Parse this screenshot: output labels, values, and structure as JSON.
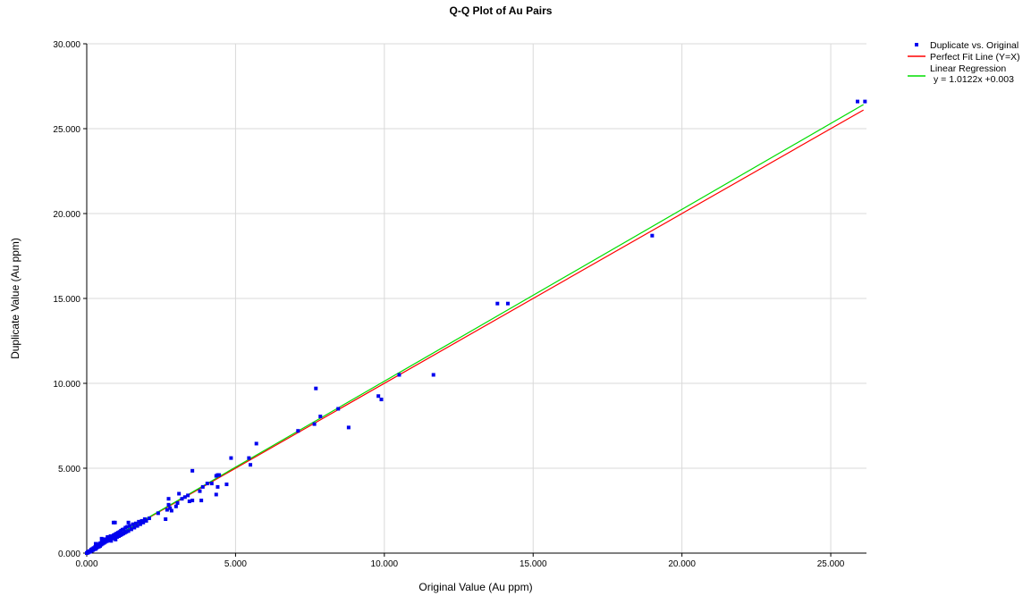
{
  "chart_data": {
    "type": "scatter",
    "title": "Q-Q Plot of Au Pairs",
    "xlabel": "Original Value (Au ppm)",
    "ylabel": "Duplicate Value (Au ppm)",
    "xlim": [
      0,
      26.2
    ],
    "ylim": [
      0,
      30
    ],
    "x_ticks": [
      "0.000",
      "5.000",
      "10.000",
      "15.000",
      "20.000",
      "25.000"
    ],
    "y_ticks": [
      "0.000",
      "5.000",
      "10.000",
      "15.000",
      "20.000",
      "25.000",
      "30.000"
    ],
    "grid": true,
    "legend_position": "top-right",
    "legend": {
      "scatter": "Duplicate vs. Original",
      "perfect_fit": "Perfect Fit Line (Y=X)",
      "regression": "Linear Regression",
      "regression_eq": "y = 1.0122x +0.003"
    },
    "colors": {
      "points": "#0000ee",
      "perfect_fit": "#ff0000",
      "regression": "#00dd00",
      "grid": "#d9d9d9"
    },
    "regression": {
      "slope": 1.0122,
      "intercept": 0.003
    },
    "series": [
      {
        "name": "Duplicate vs. Original",
        "points": [
          [
            0.0,
            0.0
          ],
          [
            0.02,
            0.02
          ],
          [
            0.03,
            0.05
          ],
          [
            0.05,
            0.03
          ],
          [
            0.06,
            0.1
          ],
          [
            0.08,
            0.07
          ],
          [
            0.1,
            0.12
          ],
          [
            0.12,
            0.08
          ],
          [
            0.14,
            0.17
          ],
          [
            0.15,
            0.21
          ],
          [
            0.17,
            0.13
          ],
          [
            0.19,
            0.25
          ],
          [
            0.21,
            0.18
          ],
          [
            0.23,
            0.3
          ],
          [
            0.24,
            0.22
          ],
          [
            0.26,
            0.28
          ],
          [
            0.28,
            0.36
          ],
          [
            0.3,
            0.24
          ],
          [
            0.32,
            0.4
          ],
          [
            0.33,
            0.31
          ],
          [
            0.35,
            0.45
          ],
          [
            0.37,
            0.35
          ],
          [
            0.39,
            0.5
          ],
          [
            0.41,
            0.38
          ],
          [
            0.43,
            0.56
          ],
          [
            0.45,
            0.42
          ],
          [
            0.47,
            0.6
          ],
          [
            0.49,
            0.5
          ],
          [
            0.51,
            0.66
          ],
          [
            0.53,
            0.55
          ],
          [
            0.55,
            0.7
          ],
          [
            0.58,
            0.6
          ],
          [
            0.6,
            0.82
          ],
          [
            0.62,
            0.65
          ],
          [
            0.65,
            0.76
          ],
          [
            0.68,
            0.7
          ],
          [
            0.7,
            0.9
          ],
          [
            0.73,
            0.75
          ],
          [
            0.75,
            0.88
          ],
          [
            0.78,
            0.8
          ],
          [
            0.8,
            1.0
          ],
          [
            0.82,
            0.72
          ],
          [
            0.85,
            0.95
          ],
          [
            0.88,
            0.86
          ],
          [
            0.9,
            1.05
          ],
          [
            0.93,
            0.9
          ],
          [
            0.95,
            1.1
          ],
          [
            0.97,
            0.8
          ],
          [
            1.0,
            1.15
          ],
          [
            1.02,
            0.95
          ],
          [
            1.05,
            1.2
          ],
          [
            1.08,
            1.0
          ],
          [
            1.1,
            1.25
          ],
          [
            1.13,
            1.05
          ],
          [
            1.15,
            1.32
          ],
          [
            1.18,
            1.1
          ],
          [
            1.2,
            1.38
          ],
          [
            1.23,
            1.15
          ],
          [
            1.25,
            1.4
          ],
          [
            1.28,
            1.2
          ],
          [
            1.3,
            1.5
          ],
          [
            1.33,
            1.25
          ],
          [
            1.36,
            1.55
          ],
          [
            1.4,
            1.3
          ],
          [
            1.45,
            1.6
          ],
          [
            1.5,
            1.4
          ],
          [
            1.55,
            1.7
          ],
          [
            1.6,
            1.5
          ],
          [
            1.65,
            1.75
          ],
          [
            1.7,
            1.6
          ],
          [
            1.75,
            1.85
          ],
          [
            1.8,
            1.7
          ],
          [
            1.85,
            1.9
          ],
          [
            1.9,
            1.8
          ],
          [
            1.95,
            2.0
          ],
          [
            2.0,
            1.9
          ],
          [
            2.1,
            2.05
          ],
          [
            2.4,
            2.35
          ],
          [
            0.9,
            1.8
          ],
          [
            0.95,
            1.8
          ],
          [
            1.4,
            1.8
          ],
          [
            0.5,
            0.85
          ],
          [
            0.3,
            0.55
          ],
          [
            0.7,
            0.95
          ],
          [
            2.65,
            2.0
          ],
          [
            2.7,
            2.55
          ],
          [
            2.75,
            2.85
          ],
          [
            2.8,
            2.65
          ],
          [
            2.75,
            3.2
          ],
          [
            2.85,
            2.5
          ],
          [
            3.05,
            2.95
          ],
          [
            3.0,
            2.75
          ],
          [
            3.1,
            3.5
          ],
          [
            3.2,
            3.2
          ],
          [
            3.3,
            3.3
          ],
          [
            3.4,
            3.4
          ],
          [
            3.45,
            3.05
          ],
          [
            3.55,
            3.1
          ],
          [
            3.55,
            4.85
          ],
          [
            3.8,
            3.65
          ],
          [
            3.85,
            3.1
          ],
          [
            3.9,
            3.9
          ],
          [
            4.05,
            4.1
          ],
          [
            4.2,
            4.1
          ],
          [
            4.35,
            4.55
          ],
          [
            4.4,
            4.6
          ],
          [
            4.4,
            3.9
          ],
          [
            4.35,
            3.45
          ],
          [
            4.45,
            4.6
          ],
          [
            4.7,
            4.05
          ],
          [
            4.85,
            5.6
          ],
          [
            5.45,
            5.6
          ],
          [
            5.5,
            5.2
          ],
          [
            5.7,
            6.45
          ],
          [
            7.1,
            7.2
          ],
          [
            7.65,
            7.6
          ],
          [
            7.7,
            9.7
          ],
          [
            7.85,
            8.05
          ],
          [
            8.45,
            8.5
          ],
          [
            8.8,
            7.4
          ],
          [
            9.8,
            9.25
          ],
          [
            9.9,
            9.05
          ],
          [
            10.5,
            10.5
          ],
          [
            11.65,
            10.5
          ],
          [
            13.8,
            14.7
          ],
          [
            14.15,
            14.7
          ],
          [
            19.0,
            18.7
          ],
          [
            25.9,
            26.6
          ],
          [
            26.15,
            26.6
          ]
        ]
      }
    ]
  }
}
